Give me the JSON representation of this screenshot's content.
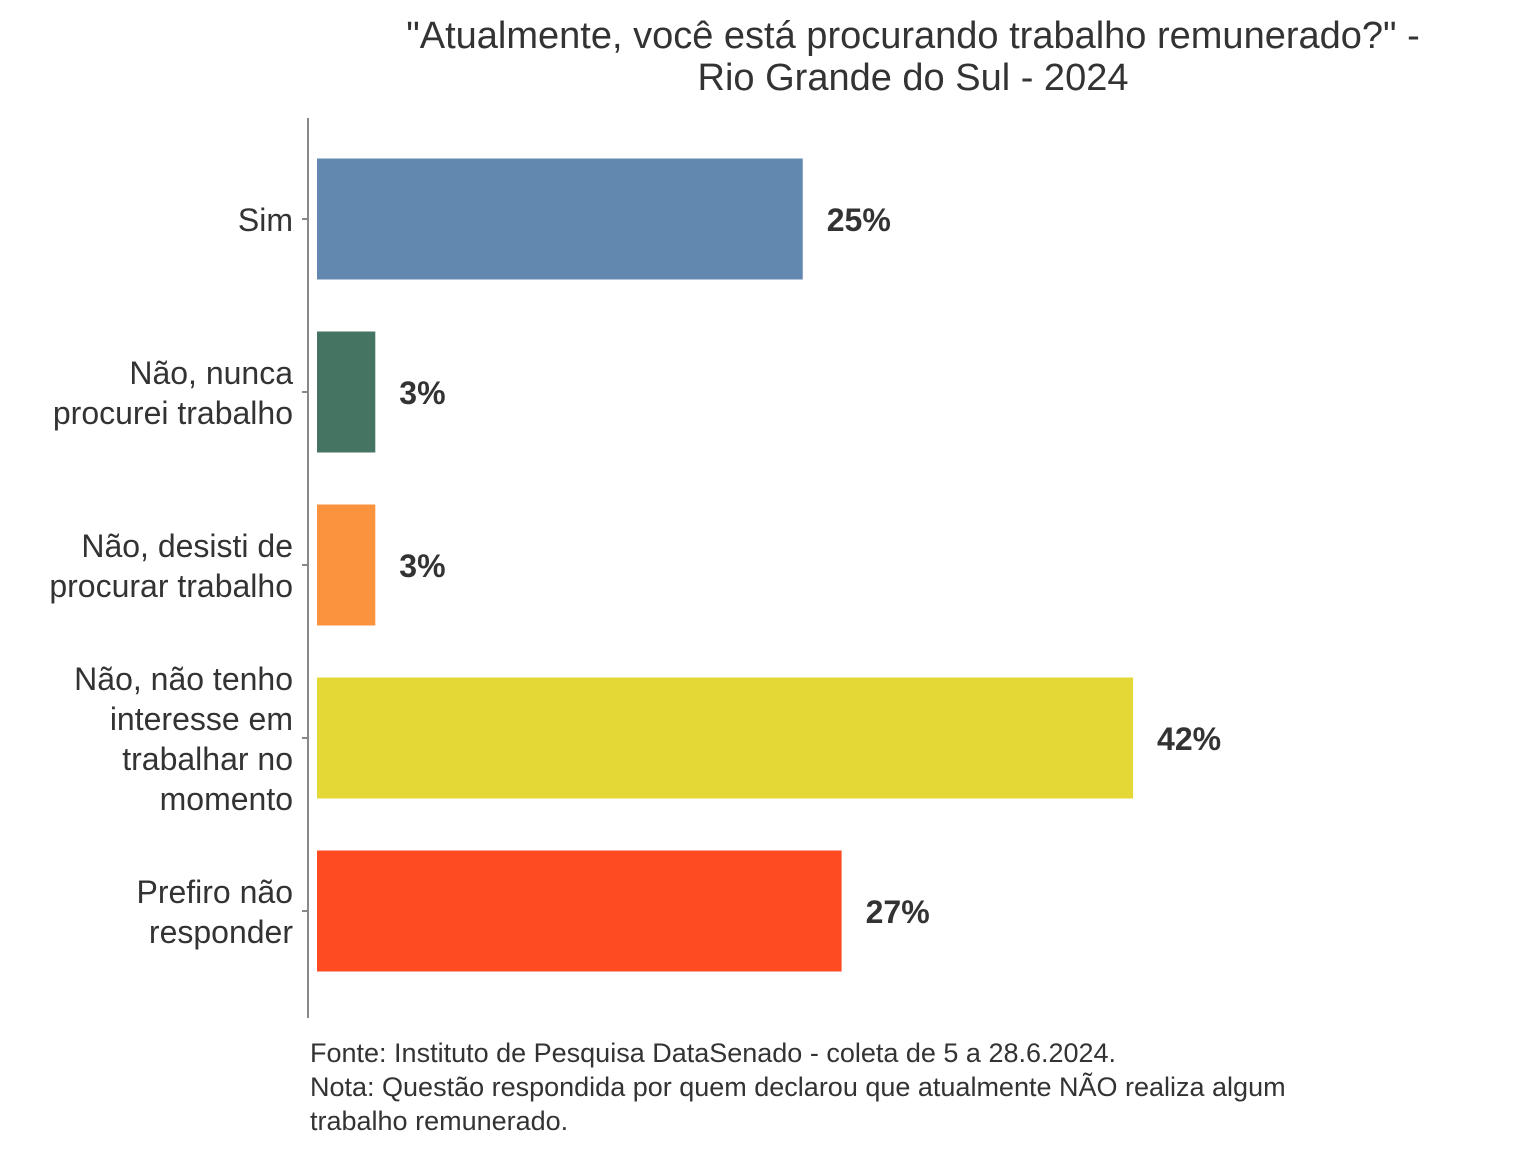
{
  "chart_data": {
    "type": "bar",
    "orientation": "horizontal",
    "title_lines": [
      "\"Atualmente, você está procurando trabalho remunerado?\" -",
      "Rio Grande do Sul - 2024"
    ],
    "categories": [
      [
        "Sim"
      ],
      [
        "Não, nunca",
        "procurei trabalho"
      ],
      [
        "Não, desisti de",
        "procurar trabalho"
      ],
      [
        "Não, não tenho",
        "interesse em",
        "trabalhar no",
        "momento"
      ],
      [
        "Prefiro não",
        "responder"
      ]
    ],
    "values": [
      25,
      3,
      3,
      42,
      27
    ],
    "value_labels": [
      "25%",
      "3%",
      "3%",
      "42%",
      "27%"
    ],
    "colors": [
      "#6388B0",
      "#467462",
      "#FB923D",
      "#E3D836",
      "#FE4B22"
    ],
    "xlim": [
      0,
      45
    ],
    "grid": false
  },
  "footer": {
    "source": "Fonte: Instituto de Pesquisa DataSenado - coleta de 5 a 28.6.2024.",
    "note_line1": "Nota: Questão respondida por quem declarou que atualmente NÃO realiza algum",
    "note_line2": "trabalho remunerado."
  }
}
